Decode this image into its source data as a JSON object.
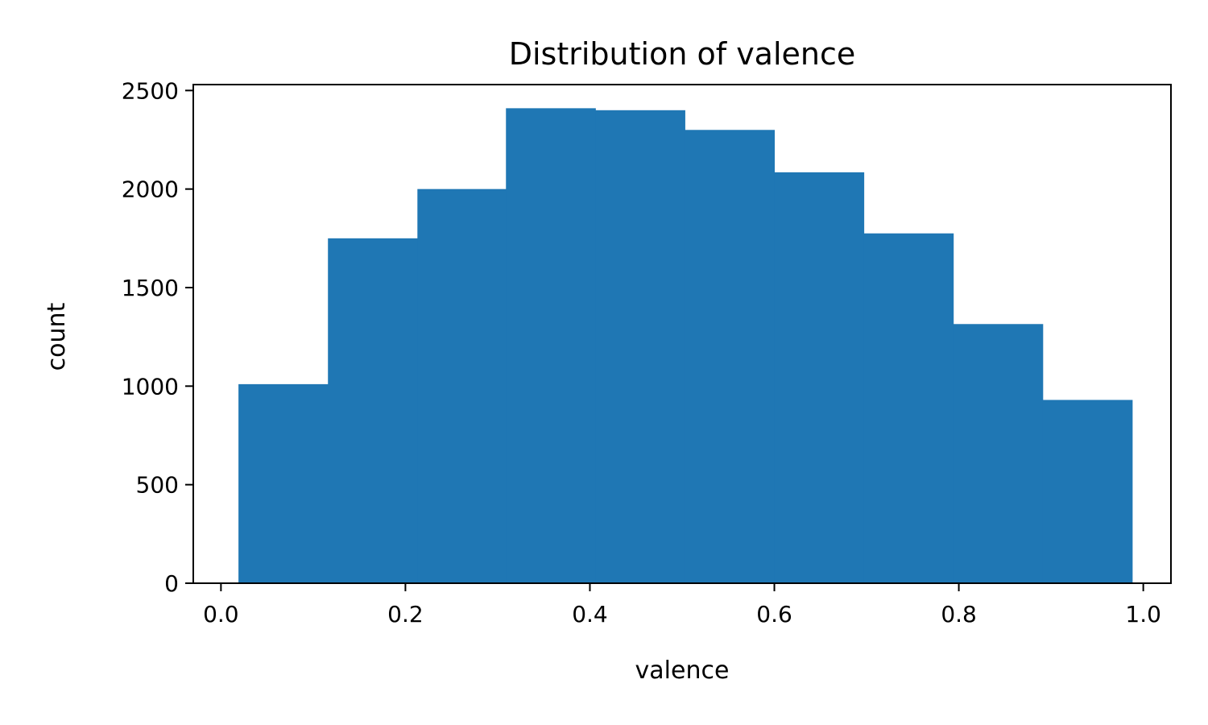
{
  "chart_data": {
    "type": "bar",
    "title": "Distribution of valence",
    "xlabel": "valence",
    "ylabel": "count",
    "xlim": [
      -0.03,
      1.03
    ],
    "ylim": [
      0,
      2530
    ],
    "xticks": [
      0.0,
      0.2,
      0.4,
      0.6,
      0.8,
      1.0
    ],
    "xtick_labels": [
      "0.0",
      "0.2",
      "0.4",
      "0.6",
      "0.8",
      "1.0"
    ],
    "yticks": [
      0,
      500,
      1000,
      1500,
      2000,
      2500
    ],
    "ytick_labels": [
      "0",
      "500",
      "1000",
      "1500",
      "2000",
      "2500"
    ],
    "bin_edges": [
      0.019,
      0.116,
      0.213,
      0.309,
      0.406,
      0.503,
      0.6,
      0.697,
      0.794,
      0.891,
      0.988
    ],
    "values": [
      1010,
      1750,
      2000,
      2410,
      2400,
      2300,
      2085,
      1775,
      1315,
      930
    ],
    "bar_color": "#1f77b4",
    "grid": false,
    "legend": "none"
  }
}
